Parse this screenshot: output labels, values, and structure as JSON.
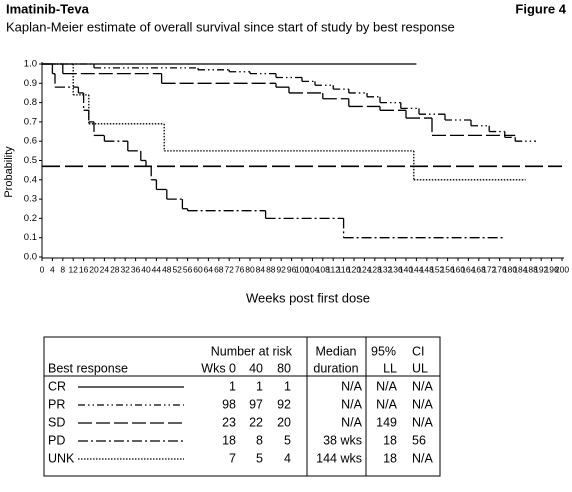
{
  "header": {
    "title": "Imatinib-Teva",
    "figure": "Figure 4"
  },
  "chart_data": {
    "type": "step",
    "title": "Kaplan-Meier estimate of overall survival since start of study by best response",
    "x_label": "Weeks post first dose",
    "y_label": "Probability",
    "xlim": [
      0,
      200
    ],
    "ylim": [
      0,
      1
    ],
    "xticks": [
      0,
      4,
      8,
      12,
      16,
      20,
      24,
      28,
      32,
      36,
      40,
      44,
      48,
      52,
      56,
      60,
      64,
      68,
      72,
      76,
      80,
      84,
      88,
      92,
      96,
      100,
      104,
      108,
      112,
      116,
      120,
      124,
      128,
      132,
      136,
      140,
      144,
      148,
      152,
      156,
      160,
      164,
      168,
      172,
      176,
      180,
      184,
      188,
      192,
      196,
      200
    ],
    "yticks": [
      {
        "value": 0,
        "label": "0.0"
      },
      0.1,
      0.2,
      0.3,
      0.4,
      0.5,
      0.6,
      0.7,
      0.8,
      0.9,
      {
        "value": 1,
        "label": "1.0"
      }
    ],
    "hline": 0.47,
    "series": [
      {
        "name": "CR",
        "color": "#000000",
        "dash": "none",
        "x": [
          0,
          144
        ],
        "values": [
          1,
          1
        ]
      },
      {
        "name": "PR",
        "color": "#000000",
        "dash": "7,3,1.5,3,1.5,3",
        "x": [
          0,
          20,
          60,
          72,
          80,
          90,
          100,
          105,
          112,
          118,
          125,
          130,
          138,
          145,
          155,
          165,
          172,
          178,
          182,
          190
        ],
        "values": [
          1,
          0.98,
          0.97,
          0.96,
          0.95,
          0.93,
          0.91,
          0.89,
          0.87,
          0.85,
          0.83,
          0.8,
          0.77,
          0.74,
          0.71,
          0.68,
          0.65,
          0.62,
          0.6,
          0.6
        ]
      },
      {
        "name": "SD",
        "color": "#000000",
        "dash": "14,4",
        "x": [
          0,
          8,
          46,
          90,
          95,
          108,
          118,
          130,
          140,
          150,
          182
        ],
        "values": [
          1,
          0.95,
          0.9,
          0.88,
          0.85,
          0.82,
          0.78,
          0.76,
          0.72,
          0.63,
          0.63
        ]
      },
      {
        "name": "PD",
        "color": "#000000",
        "dash": "10,3,2,3",
        "x": [
          0,
          4,
          5,
          14,
          16,
          18,
          20,
          24,
          33,
          38,
          40,
          42,
          44,
          48,
          54,
          56,
          86,
          116,
          178
        ],
        "values": [
          1,
          0.95,
          0.88,
          0.85,
          0.76,
          0.7,
          0.63,
          0.6,
          0.55,
          0.5,
          0.47,
          0.4,
          0.35,
          0.3,
          0.25,
          0.24,
          0.2,
          0.1,
          0.1
        ]
      },
      {
        "name": "UNK",
        "color": "#000000",
        "dash": "1.5,1.5",
        "x": [
          0,
          12,
          18,
          47,
          143,
          186
        ],
        "values": [
          1,
          0.84,
          0.69,
          0.55,
          0.4,
          0.4
        ]
      }
    ]
  },
  "table": {
    "headers": {
      "best_response": "Best response",
      "at_risk": "Number at risk",
      "wks": "Wks 0",
      "w40": "40",
      "w80": "80",
      "median": "Median",
      "duration": "duration",
      "ci_pct": "95%",
      "ci": "CI",
      "ll": "LL",
      "ul": "UL"
    },
    "rows": [
      [
        1,
        1,
        1,
        "N/A",
        "N/A",
        "N/A"
      ],
      [
        98,
        97,
        92,
        "N/A",
        "N/A",
        "N/A"
      ],
      [
        23,
        22,
        20,
        "N/A",
        149,
        "N/A"
      ],
      [
        18,
        8,
        5,
        "38 wks",
        18,
        56
      ],
      [
        7,
        5,
        4,
        "144 wks",
        18,
        "N/A"
      ]
    ]
  }
}
